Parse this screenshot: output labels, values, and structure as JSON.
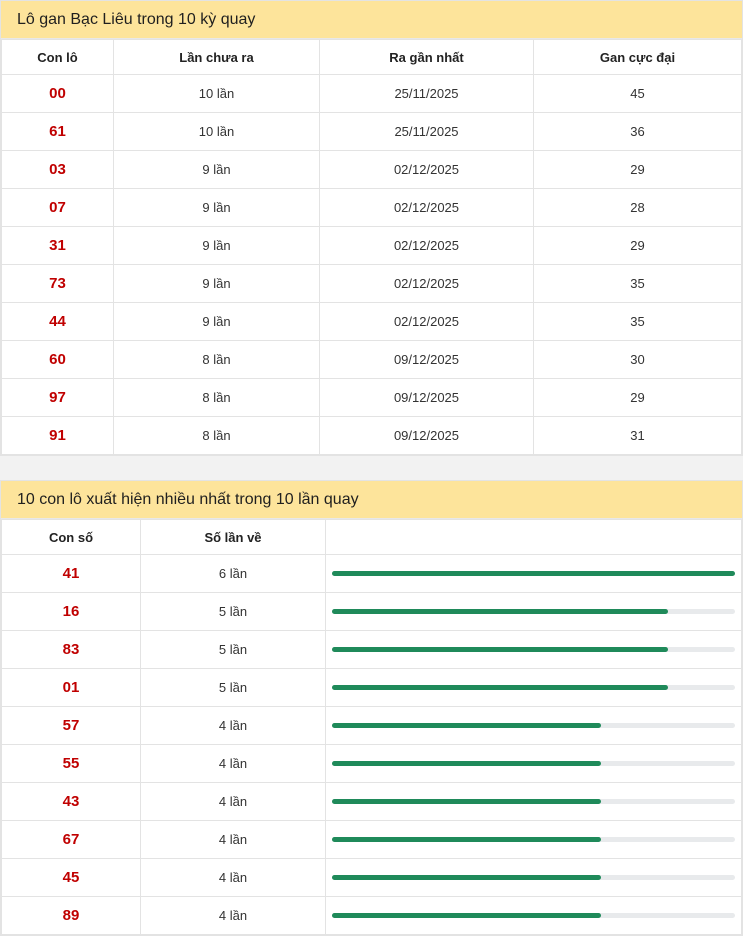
{
  "lo_gan": {
    "title": "Lô gan Bạc Liêu trong 10 kỳ quay",
    "headers": [
      "Con lô",
      "Lần chưa ra",
      "Ra gần nhất",
      "Gan cực đại"
    ],
    "rows": [
      {
        "con_lo": "00",
        "lan_chua_ra": "10 lần",
        "ra_gan_nhat": "25/11/2025",
        "gan_cuc_dai": "45"
      },
      {
        "con_lo": "61",
        "lan_chua_ra": "10 lần",
        "ra_gan_nhat": "25/11/2025",
        "gan_cuc_dai": "36"
      },
      {
        "con_lo": "03",
        "lan_chua_ra": "9 lần",
        "ra_gan_nhat": "02/12/2025",
        "gan_cuc_dai": "29"
      },
      {
        "con_lo": "07",
        "lan_chua_ra": "9 lần",
        "ra_gan_nhat": "02/12/2025",
        "gan_cuc_dai": "28"
      },
      {
        "con_lo": "31",
        "lan_chua_ra": "9 lần",
        "ra_gan_nhat": "02/12/2025",
        "gan_cuc_dai": "29"
      },
      {
        "con_lo": "73",
        "lan_chua_ra": "9 lần",
        "ra_gan_nhat": "02/12/2025",
        "gan_cuc_dai": "35"
      },
      {
        "con_lo": "44",
        "lan_chua_ra": "9 lần",
        "ra_gan_nhat": "02/12/2025",
        "gan_cuc_dai": "35"
      },
      {
        "con_lo": "60",
        "lan_chua_ra": "8 lần",
        "ra_gan_nhat": "09/12/2025",
        "gan_cuc_dai": "30"
      },
      {
        "con_lo": "97",
        "lan_chua_ra": "8 lần",
        "ra_gan_nhat": "09/12/2025",
        "gan_cuc_dai": "29"
      },
      {
        "con_lo": "91",
        "lan_chua_ra": "8 lần",
        "ra_gan_nhat": "09/12/2025",
        "gan_cuc_dai": "31"
      }
    ]
  },
  "top_lo": {
    "title": "10 con lô xuất hiện nhiều nhất trong 10 lần quay",
    "headers": [
      "Con số",
      "Số lần về",
      ""
    ],
    "bar_color": "#1f8a5a",
    "track_color": "#e8eaec",
    "rows": [
      {
        "con_so": "41",
        "so_lan_ve": "6 lần",
        "count": 6
      },
      {
        "con_so": "16",
        "so_lan_ve": "5 lần",
        "count": 5
      },
      {
        "con_so": "83",
        "so_lan_ve": "5 lần",
        "count": 5
      },
      {
        "con_so": "01",
        "so_lan_ve": "5 lần",
        "count": 5
      },
      {
        "con_so": "57",
        "so_lan_ve": "4 lần",
        "count": 4
      },
      {
        "con_so": "55",
        "so_lan_ve": "4 lần",
        "count": 4
      },
      {
        "con_so": "43",
        "so_lan_ve": "4 lần",
        "count": 4
      },
      {
        "con_so": "67",
        "so_lan_ve": "4 lần",
        "count": 4
      },
      {
        "con_so": "45",
        "so_lan_ve": "4 lần",
        "count": 4
      },
      {
        "con_so": "89",
        "so_lan_ve": "4 lần",
        "count": 4
      }
    ]
  }
}
